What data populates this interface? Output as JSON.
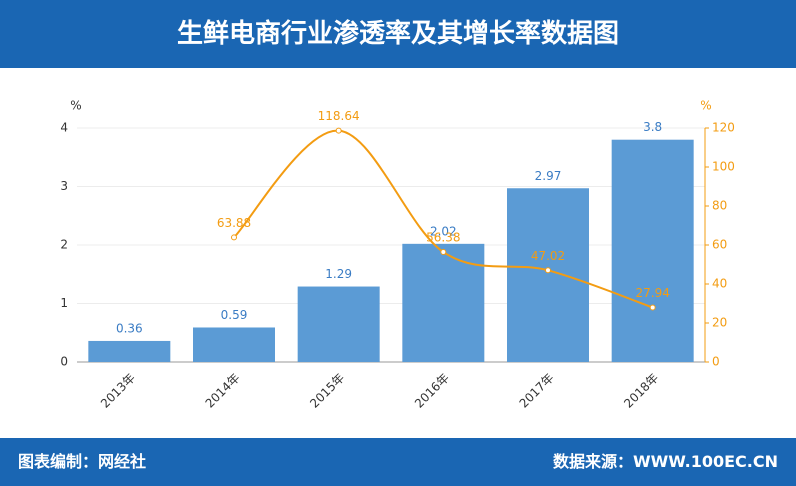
{
  "header": {
    "title": "生鲜电商行业渗透率及其增长率数据图"
  },
  "footer": {
    "left": "图表编制：网经社",
    "right": "数据来源：WWW.100EC.CN"
  },
  "chart_data": {
    "type": "bar",
    "categories": [
      "2013年",
      "2014年",
      "2015年",
      "2016年",
      "2017年",
      "2018年"
    ],
    "ylabel": "%",
    "y2label": "%",
    "ylim": [
      0,
      4
    ],
    "yticks": [
      0,
      1,
      2,
      3,
      4
    ],
    "y2lim": [
      0,
      120
    ],
    "y2ticks": [
      0,
      20,
      40,
      60,
      80,
      100,
      120
    ],
    "grid": true,
    "series": [
      {
        "type": "bar",
        "color": "#5b9bd5",
        "values": [
          0.36,
          0.59,
          1.29,
          2.02,
          2.97,
          3.8
        ]
      },
      {
        "type": "line",
        "axis": "y2",
        "color": "#f39c12",
        "values": [
          null,
          63.88,
          118.64,
          56.38,
          47.02,
          27.94
        ]
      }
    ]
  }
}
